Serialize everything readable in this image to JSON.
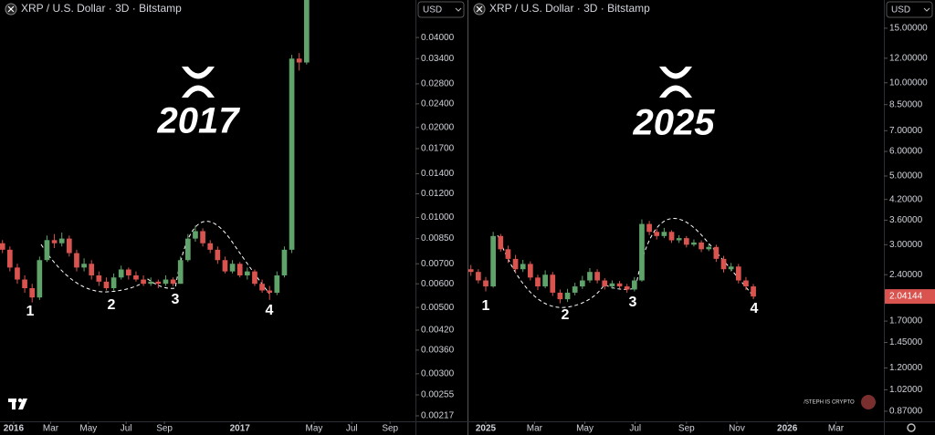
{
  "chart_data": [
    {
      "type": "candlestick",
      "title": "XRP / U.S. Dollar · 3D · Bitstamp",
      "currency": "USD",
      "annotation": "2017",
      "point_labels": [
        "1",
        "2",
        "3",
        "4"
      ],
      "log_scale": true,
      "up_color": "#5fa36a",
      "down_color": "#d9534f",
      "xlim": [
        -22,
        650
      ],
      "ylim": [
        0.00208,
        0.0534
      ],
      "xticks": [
        {
          "value": 0,
          "label": "2016"
        },
        {
          "value": 60,
          "label": "Mar"
        },
        {
          "value": 121,
          "label": "May"
        },
        {
          "value": 182,
          "label": "Jul"
        },
        {
          "value": 244,
          "label": "Sep"
        },
        {
          "value": 366,
          "label": "2017"
        },
        {
          "value": 486,
          "label": "May"
        },
        {
          "value": 547,
          "label": "Jul"
        },
        {
          "value": 609,
          "label": "Sep"
        }
      ],
      "yticks": [
        {
          "value": 0.04,
          "label": "0.04000"
        },
        {
          "value": 0.034,
          "label": "0.03400"
        },
        {
          "value": 0.028,
          "label": "0.02800"
        },
        {
          "value": 0.024,
          "label": "0.02400"
        },
        {
          "value": 0.02,
          "label": "0.02000"
        },
        {
          "value": 0.017,
          "label": "0.01700"
        },
        {
          "value": 0.014,
          "label": "0.01400"
        },
        {
          "value": 0.012,
          "label": "0.01200"
        },
        {
          "value": 0.01,
          "label": "0.01000"
        },
        {
          "value": 0.0085,
          "label": "0.00850"
        },
        {
          "value": 0.007,
          "label": "0.00700"
        },
        {
          "value": 0.006,
          "label": "0.00600"
        },
        {
          "value": 0.005,
          "label": "0.00500"
        },
        {
          "value": 0.0042,
          "label": "0.00420"
        },
        {
          "value": 0.0036,
          "label": "0.00360"
        },
        {
          "value": 0.003,
          "label": "0.00300"
        },
        {
          "value": 0.00255,
          "label": "0.00255"
        },
        {
          "value": 0.00217,
          "label": "0.00217"
        }
      ],
      "x": [
        -18,
        -6,
        6,
        18,
        30,
        42,
        54,
        66,
        78,
        90,
        102,
        114,
        126,
        138,
        150,
        162,
        174,
        186,
        198,
        210,
        222,
        234,
        246,
        258,
        270,
        282,
        294,
        306,
        318,
        330,
        342,
        354,
        366,
        378,
        390,
        402,
        414,
        426,
        438,
        450,
        462,
        474
      ],
      "open": [
        0.0082,
        0.0078,
        0.0068,
        0.0062,
        0.0058,
        0.0054,
        0.0072,
        0.0084,
        0.0082,
        0.0085,
        0.0076,
        0.0068,
        0.007,
        0.0064,
        0.0061,
        0.0058,
        0.0063,
        0.0067,
        0.0064,
        0.0062,
        0.006,
        0.0061,
        0.006,
        0.0062,
        0.006,
        0.0072,
        0.0085,
        0.009,
        0.0082,
        0.0078,
        0.0072,
        0.0066,
        0.007,
        0.0064,
        0.0066,
        0.006,
        0.0057,
        0.0056,
        0.0064,
        0.0078,
        0.034,
        0.033
      ],
      "high": [
        0.0084,
        0.008,
        0.007,
        0.0064,
        0.006,
        0.0074,
        0.0087,
        0.0088,
        0.0089,
        0.0087,
        0.0078,
        0.0073,
        0.0072,
        0.0066,
        0.0063,
        0.0065,
        0.0069,
        0.0068,
        0.0066,
        0.0064,
        0.0063,
        0.0062,
        0.0064,
        0.0063,
        0.0074,
        0.0088,
        0.0094,
        0.0092,
        0.0084,
        0.008,
        0.0074,
        0.0072,
        0.0071,
        0.0068,
        0.0067,
        0.0062,
        0.0059,
        0.0066,
        0.008,
        0.035,
        0.0355,
        0.065
      ],
      "low": [
        0.0076,
        0.0066,
        0.006,
        0.0056,
        0.0052,
        0.0053,
        0.0071,
        0.0079,
        0.008,
        0.0074,
        0.0066,
        0.0066,
        0.0062,
        0.0059,
        0.0057,
        0.0057,
        0.0062,
        0.0062,
        0.0061,
        0.0059,
        0.0059,
        0.0058,
        0.0059,
        0.0059,
        0.006,
        0.0071,
        0.0083,
        0.008,
        0.0076,
        0.007,
        0.0065,
        0.0065,
        0.0063,
        0.0062,
        0.0059,
        0.0056,
        0.0053,
        0.0055,
        0.0063,
        0.0076,
        0.031,
        0.0325
      ],
      "close": [
        0.0078,
        0.0068,
        0.0062,
        0.0058,
        0.0054,
        0.0072,
        0.0084,
        0.0082,
        0.0085,
        0.0076,
        0.0068,
        0.007,
        0.0064,
        0.0061,
        0.0058,
        0.0063,
        0.0067,
        0.0064,
        0.0062,
        0.006,
        0.0061,
        0.006,
        0.0062,
        0.006,
        0.0072,
        0.0085,
        0.009,
        0.0082,
        0.0078,
        0.0072,
        0.0066,
        0.007,
        0.0064,
        0.0066,
        0.006,
        0.0057,
        0.0056,
        0.0064,
        0.0078,
        0.034,
        0.033,
        0.06
      ]
    },
    {
      "type": "candlestick",
      "title": "XRP / U.S. Dollar · 3D · Bitstamp",
      "currency": "USD",
      "annotation": "2025",
      "point_labels": [
        "1",
        "2",
        "3",
        "4"
      ],
      "watermark": "/STEPH IS CRYPTO",
      "log_scale": true,
      "up_color": "#5fa36a",
      "down_color": "#d9534f",
      "xlim": [
        -21,
        482
      ],
      "ylim": [
        0.807,
        18.5
      ],
      "xticks": [
        {
          "value": 0,
          "label": "2025"
        },
        {
          "value": 59,
          "label": "Mar"
        },
        {
          "value": 120,
          "label": "May"
        },
        {
          "value": 181,
          "label": "Jul"
        },
        {
          "value": 243,
          "label": "Sep"
        },
        {
          "value": 304,
          "label": "Nov"
        },
        {
          "value": 365,
          "label": "2026"
        },
        {
          "value": 424,
          "label": "Mar"
        }
      ],
      "yticks": [
        {
          "value": 15,
          "label": "15.00000"
        },
        {
          "value": 12,
          "label": "12.00000"
        },
        {
          "value": 10,
          "label": "10.00000"
        },
        {
          "value": 8.5,
          "label": "8.50000"
        },
        {
          "value": 7,
          "label": "7.00000"
        },
        {
          "value": 6,
          "label": "6.00000"
        },
        {
          "value": 5,
          "label": "5.00000"
        },
        {
          "value": 4.2,
          "label": "4.20000"
        },
        {
          "value": 3.6,
          "label": "3.60000"
        },
        {
          "value": 3,
          "label": "3.00000"
        },
        {
          "value": 2.4,
          "label": "2.40000"
        },
        {
          "value": 1.7,
          "label": "1.70000"
        },
        {
          "value": 1.45,
          "label": "1.45000"
        },
        {
          "value": 1.2,
          "label": "1.20000"
        },
        {
          "value": 1.02,
          "label": "1.02000"
        },
        {
          "value": 0.87,
          "label": "0.87000"
        }
      ],
      "x": [
        -18,
        -9,
        0,
        9,
        18,
        27,
        36,
        45,
        54,
        63,
        72,
        81,
        90,
        99,
        108,
        117,
        126,
        135,
        144,
        153,
        162,
        171,
        180,
        189,
        198,
        207,
        216,
        225,
        234,
        243,
        252,
        261,
        270,
        279,
        288,
        297,
        306,
        315,
        324
      ],
      "open": [
        2.5,
        2.45,
        2.3,
        2.2,
        3.2,
        2.9,
        2.7,
        2.5,
        2.6,
        2.35,
        2.2,
        2.4,
        2.1,
        2.0,
        2.1,
        2.2,
        2.3,
        2.45,
        2.3,
        2.2,
        2.25,
        2.2,
        2.15,
        2.3,
        3.5,
        3.3,
        3.2,
        3.3,
        3.1,
        3.15,
        3.0,
        3.05,
        2.9,
        2.95,
        2.7,
        2.5,
        2.55,
        2.3,
        2.2
      ],
      "high": [
        2.58,
        2.5,
        2.36,
        3.3,
        3.25,
        2.98,
        2.78,
        2.68,
        2.65,
        2.4,
        2.48,
        2.45,
        2.15,
        2.16,
        2.26,
        2.38,
        2.52,
        2.5,
        2.34,
        2.3,
        2.29,
        2.24,
        2.36,
        3.62,
        3.58,
        3.38,
        3.4,
        3.34,
        3.22,
        3.2,
        3.12,
        3.1,
        3.02,
        3.0,
        2.76,
        2.62,
        2.6,
        2.36,
        2.24
      ],
      "low": [
        2.38,
        2.25,
        2.12,
        2.18,
        2.85,
        2.62,
        2.44,
        2.45,
        2.3,
        2.14,
        2.17,
        2.05,
        1.94,
        1.96,
        2.06,
        2.16,
        2.26,
        2.25,
        2.15,
        2.16,
        2.16,
        2.1,
        2.12,
        2.28,
        3.22,
        3.12,
        3.15,
        3.04,
        3.04,
        2.94,
        2.96,
        2.84,
        2.86,
        2.64,
        2.44,
        2.46,
        2.25,
        2.14,
        2.0
      ],
      "close": [
        2.45,
        2.3,
        2.2,
        3.2,
        2.9,
        2.7,
        2.5,
        2.6,
        2.35,
        2.2,
        2.4,
        2.1,
        2.0,
        2.1,
        2.2,
        2.3,
        2.45,
        2.3,
        2.2,
        2.25,
        2.2,
        2.15,
        2.3,
        3.5,
        3.3,
        3.2,
        3.3,
        3.1,
        3.15,
        3.0,
        3.05,
        2.9,
        2.95,
        2.7,
        2.5,
        2.55,
        2.3,
        2.2,
        2.04144
      ]
    }
  ]
}
